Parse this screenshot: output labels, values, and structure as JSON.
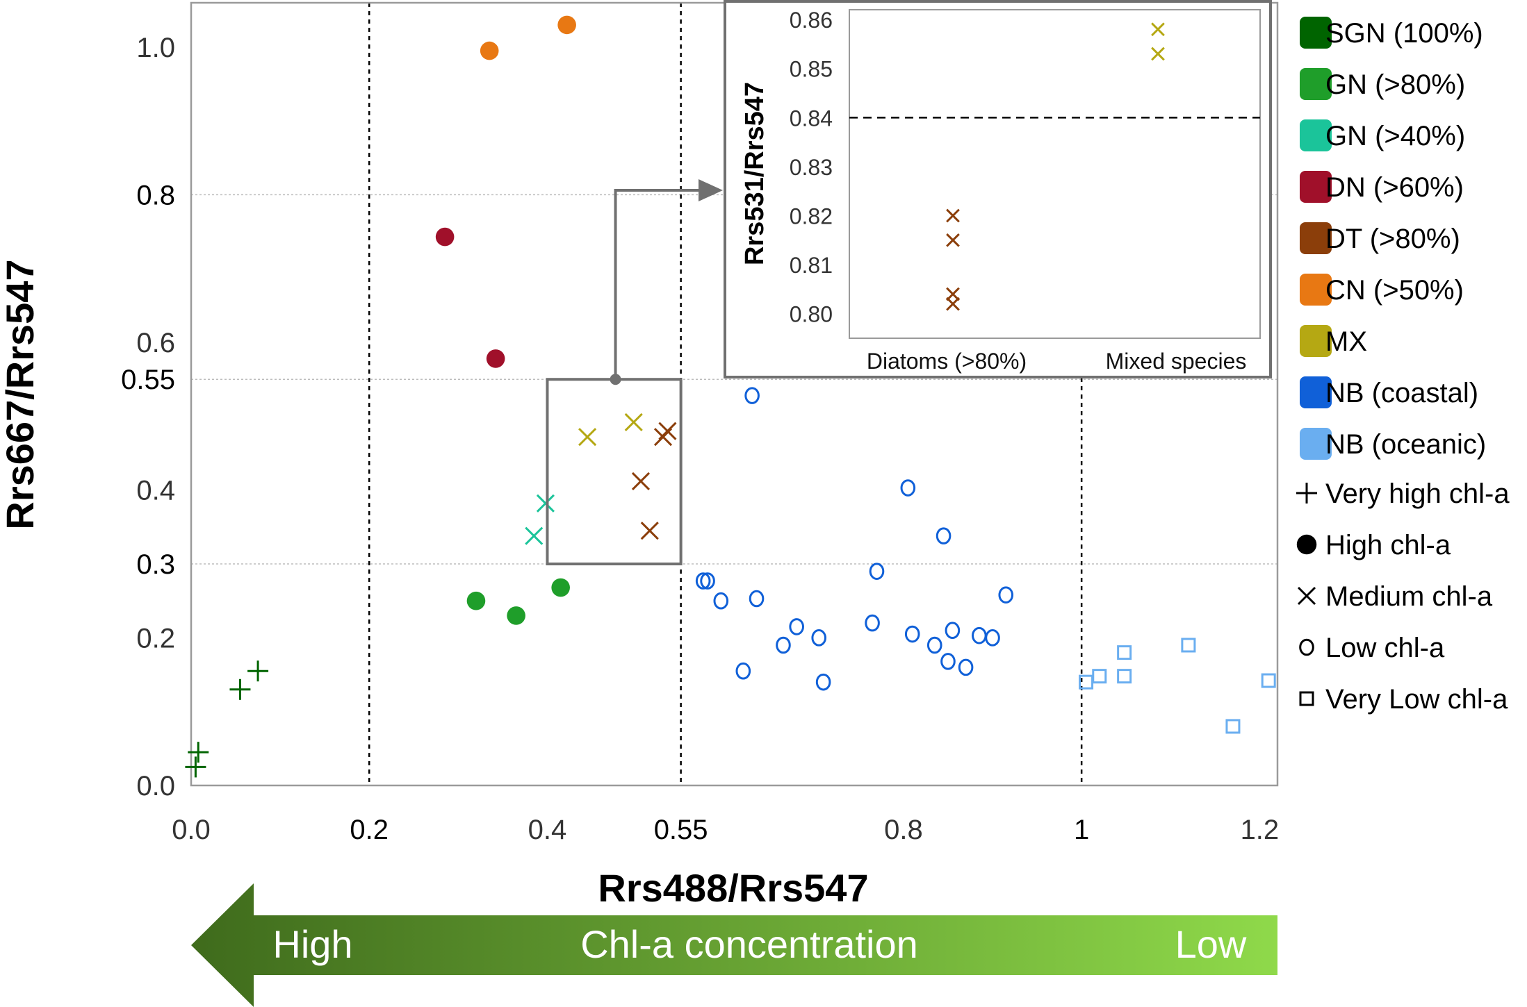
{
  "chart_data": {
    "type": "scatter",
    "xlabel": "Rrs488/Rrs547",
    "ylabel": "Rrs667/Rrs547",
    "xlim": [
      0.0,
      1.22
    ],
    "ylim": [
      0.0,
      1.06
    ],
    "x_ticks": [
      "0.0",
      "0.2",
      "0.4",
      "0.55",
      "0.8",
      "1",
      "1.2"
    ],
    "x_tick_values": [
      0.0,
      0.2,
      0.4,
      0.55,
      0.8,
      1.0,
      1.2
    ],
    "x_ticks_bold": [
      false,
      true,
      false,
      true,
      false,
      true,
      false
    ],
    "y_ticks": [
      "0.0",
      "0.2",
      "0.3",
      "0.4",
      "0.55",
      "0.6",
      "0.8",
      "1.0"
    ],
    "y_tick_values": [
      0.0,
      0.2,
      0.3,
      0.4,
      0.55,
      0.6,
      0.8,
      1.0
    ],
    "y_ticks_bold": [
      false,
      false,
      true,
      false,
      true,
      false,
      true,
      false
    ],
    "vertical_dotted_lines": [
      0.2,
      0.55,
      1.0
    ],
    "horizontal_gridlines": [
      0.3,
      0.55,
      0.8
    ],
    "zoom_box": {
      "x": [
        0.4,
        0.55
      ],
      "y": [
        0.3,
        0.55
      ]
    },
    "series": [
      {
        "name": "SGN (100%)",
        "color": "#006400",
        "marker": "plus",
        "points": [
          [
            0.005,
            0.025
          ],
          [
            0.008,
            0.045
          ],
          [
            0.055,
            0.13
          ],
          [
            0.075,
            0.155
          ]
        ]
      },
      {
        "name": "GN (>80%)",
        "color": "#1f9e2a",
        "marker": "dot",
        "points": [
          [
            0.32,
            0.25
          ],
          [
            0.365,
            0.23
          ],
          [
            0.415,
            0.268
          ]
        ]
      },
      {
        "name": "GN (>40%)",
        "color": "#1bc49a",
        "marker": "cross",
        "points": [
          [
            0.385,
            0.338
          ],
          [
            0.398,
            0.382
          ]
        ]
      },
      {
        "name": "DN (>60%)",
        "color": "#a0102a",
        "marker": "dot",
        "points": [
          [
            0.285,
            0.743
          ],
          [
            0.342,
            0.578
          ]
        ]
      },
      {
        "name": "DT (>80%)",
        "color": "#8b3e0a",
        "marker": "cross",
        "points": [
          [
            0.505,
            0.412
          ],
          [
            0.515,
            0.345
          ],
          [
            0.53,
            0.472
          ],
          [
            0.535,
            0.48
          ]
        ]
      },
      {
        "name": "CN (>50%)",
        "color": "#e87813",
        "marker": "dot",
        "points": [
          [
            0.335,
            0.995
          ],
          [
            0.422,
            1.03
          ]
        ]
      },
      {
        "name": "MX",
        "color": "#b5a813",
        "marker": "cross",
        "points": [
          [
            0.445,
            0.472
          ],
          [
            0.497,
            0.492
          ]
        ]
      },
      {
        "name": "NB (coastal)",
        "color": "#1060d8",
        "marker": "circle",
        "points": [
          [
            0.63,
            0.528
          ],
          [
            0.805,
            0.403
          ],
          [
            0.845,
            0.338
          ],
          [
            0.77,
            0.29
          ],
          [
            0.575,
            0.277
          ],
          [
            0.58,
            0.277
          ],
          [
            0.595,
            0.25
          ],
          [
            0.635,
            0.253
          ],
          [
            0.915,
            0.258
          ],
          [
            0.68,
            0.215
          ],
          [
            0.765,
            0.22
          ],
          [
            0.855,
            0.21
          ],
          [
            0.81,
            0.205
          ],
          [
            0.885,
            0.203
          ],
          [
            0.9,
            0.2
          ],
          [
            0.705,
            0.2
          ],
          [
            0.665,
            0.19
          ],
          [
            0.835,
            0.19
          ],
          [
            0.85,
            0.168
          ],
          [
            0.87,
            0.16
          ],
          [
            0.62,
            0.155
          ],
          [
            0.71,
            0.14
          ]
        ]
      },
      {
        "name": "NB (oceanic)",
        "color": "#6aaef0",
        "marker": "square",
        "points": [
          [
            1.005,
            0.14
          ],
          [
            1.02,
            0.148
          ],
          [
            1.048,
            0.148
          ],
          [
            1.048,
            0.18
          ],
          [
            1.12,
            0.19
          ],
          [
            1.21,
            0.142
          ],
          [
            1.17,
            0.08
          ]
        ]
      }
    ],
    "legend_markers": [
      {
        "label": "Very high chl-a",
        "marker": "plus"
      },
      {
        "label": "High chl-a",
        "marker": "dot"
      },
      {
        "label": "Medium chl-a",
        "marker": "cross"
      },
      {
        "label": "Low chl-a",
        "marker": "circle"
      },
      {
        "label": "Very Low chl-a",
        "marker": "square"
      }
    ],
    "inset": {
      "ylabel": "Rrs531/Rrs547",
      "categories": [
        "Diatoms (>80%)",
        "Mixed species"
      ],
      "ylim": [
        0.795,
        0.862
      ],
      "y_ticks": [
        "0.80",
        "0.81",
        "0.82",
        "0.83",
        "0.84",
        "0.85",
        "0.86"
      ],
      "y_tick_values": [
        0.8,
        0.81,
        0.82,
        0.83,
        0.84,
        0.85,
        0.86
      ],
      "threshold": 0.84,
      "series": [
        {
          "name": "Diatoms (>80%)",
          "color": "#8b3e0a",
          "category_index": 0,
          "values": [
            0.82,
            0.815,
            0.804,
            0.802
          ]
        },
        {
          "name": "Mixed species",
          "color": "#b5a813",
          "category_index": 1,
          "values": [
            0.858,
            0.853
          ]
        }
      ]
    },
    "arrow_bar": {
      "left_label": "High",
      "center_label": "Chl-a concentration",
      "right_label": "Low",
      "color_start": "#3f6b1c",
      "color_end": "#8fd94a"
    }
  }
}
